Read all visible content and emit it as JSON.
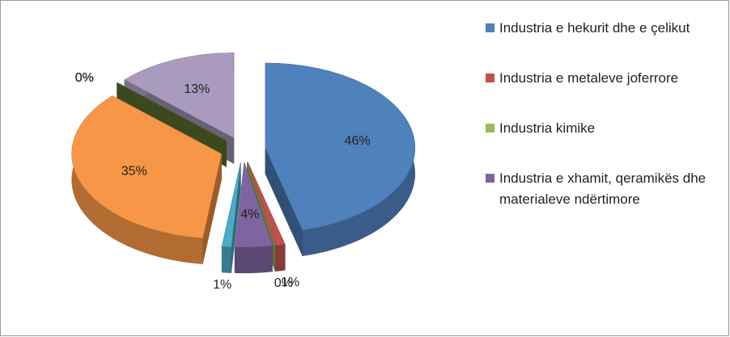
{
  "chart_data": {
    "type": "pie",
    "categories": [
      "Industria e hekurit dhe e çelikut",
      "Industria e metaleve joferrore",
      "Industria kimike",
      "Industria e xhamit, qeramikës dhe materialeve ndërtimore",
      null,
      null,
      null,
      null,
      null,
      null
    ],
    "values": [
      46,
      1,
      0,
      4,
      1,
      35,
      0,
      0,
      0,
      13
    ],
    "value_labels": [
      "46%",
      "1%",
      "0%",
      "4%",
      "1%",
      "35%",
      "0%",
      "0%",
      "0%",
      "13%"
    ],
    "colors": [
      "#4f81bd",
      "#c0504d",
      "#9bbb59",
      "#8064a2",
      "#4bacc6",
      "#f79646",
      "#2c4d75",
      "#772c2a",
      "#5f7530",
      "#a99bbd"
    ],
    "legend": "right"
  }
}
